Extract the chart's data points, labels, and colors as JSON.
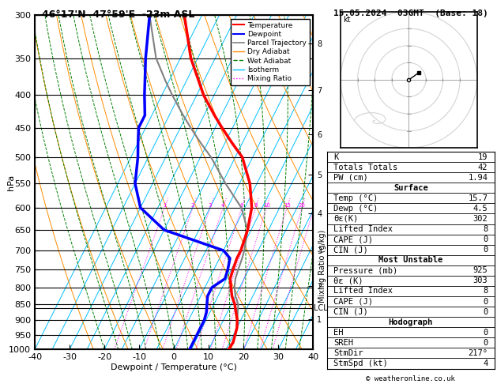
{
  "title_left": "46°17'N  47°59'E  -23m ASL",
  "header_top": "15.05.2024  03GMT  (Base: 18)",
  "xlabel": "Dewpoint / Temperature (°C)",
  "ylabel_left": "hPa",
  "copyright": "© weatheronline.co.uk",
  "pressure_levels": [
    300,
    350,
    400,
    450,
    500,
    550,
    600,
    650,
    700,
    750,
    800,
    850,
    900,
    950,
    1000
  ],
  "p_min": 300,
  "p_max": 1000,
  "temp_min": -40,
  "temp_max": 40,
  "skew_factor": 0.6,
  "temp_profile": {
    "pressures": [
      300,
      350,
      400,
      430,
      450,
      475,
      500,
      550,
      600,
      650,
      700,
      720,
      750,
      775,
      800,
      825,
      850,
      875,
      900,
      925,
      950,
      975,
      1000
    ],
    "temps": [
      -45,
      -37,
      -28,
      -22,
      -18,
      -13,
      -8,
      -2,
      2,
      4,
      5,
      5,
      5.5,
      6,
      7.5,
      9,
      11,
      12.5,
      14,
      15,
      15.5,
      16,
      15.7
    ]
  },
  "dewp_profile": {
    "pressures": [
      300,
      350,
      400,
      430,
      450,
      475,
      500,
      550,
      600,
      650,
      700,
      720,
      750,
      775,
      800,
      825,
      850,
      875,
      900,
      925,
      950,
      975,
      1000
    ],
    "temps": [
      -55,
      -50,
      -45,
      -42,
      -42,
      -40,
      -38,
      -35,
      -30,
      -20,
      0,
      3,
      4,
      4.5,
      2,
      2,
      3,
      4,
      4.5,
      4.5,
      4.5,
      4.5,
      4.5
    ]
  },
  "parcel_trajectory": {
    "pressures": [
      300,
      350,
      380,
      400,
      430,
      450,
      475,
      500,
      550,
      600,
      650,
      700,
      720,
      750,
      775,
      800,
      825,
      850,
      875,
      900,
      925,
      950,
      975,
      1000
    ],
    "temps": [
      -55,
      -47,
      -41,
      -37,
      -31,
      -27,
      -22,
      -17,
      -9,
      -1,
      4,
      6,
      6.5,
      7,
      7.5,
      8.5,
      10,
      12,
      13,
      14,
      15,
      15.5,
      15.8,
      15.7
    ]
  },
  "temp_color": "#ff0000",
  "dewp_color": "#0000ff",
  "parcel_color": "#808080",
  "dry_adiabat_color": "#ff8c00",
  "wet_adiabat_color": "#008000",
  "isotherm_color": "#00bfff",
  "mixing_ratio_color": "#ff00ff",
  "stats": {
    "K": 19,
    "Totals_Totals": 42,
    "PW_cm": 1.94,
    "Surf_Temp": 15.7,
    "Surf_Dewp": 4.5,
    "Surf_ThetaE": 302,
    "Surf_LI": 8,
    "Surf_CAPE": 0,
    "Surf_CIN": 0,
    "MU_Pressure": 925,
    "MU_ThetaE": 303,
    "MU_LI": 8,
    "MU_CAPE": 0,
    "MU_CIN": 0,
    "Hodograph_EH": 0,
    "SREH": 0,
    "StmDir": 217,
    "StmSpd": 4
  },
  "mixing_ratio_lines": [
    1,
    2,
    3,
    4,
    6,
    8,
    10,
    15,
    20,
    25
  ],
  "lcl_pressure": 862,
  "km_ticks": [
    1,
    2,
    3,
    4,
    5,
    6,
    7,
    8
  ],
  "km_pressures": [
    898,
    795,
    700,
    613,
    533,
    460,
    393,
    332
  ]
}
